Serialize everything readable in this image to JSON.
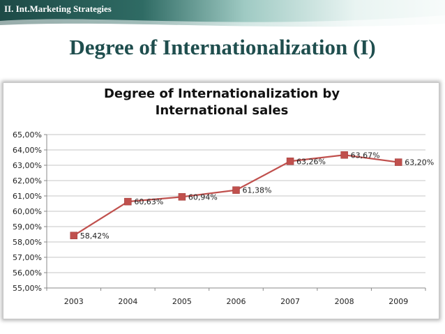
{
  "header": {
    "section_label": "II. Int.Marketing Strategies",
    "slide_title": "Degree of Internationalization (I)"
  },
  "colors": {
    "banner_dark": "#1d4a46",
    "banner_light": "#e9f4f2",
    "series": "#c0504d"
  },
  "chart_data": {
    "type": "line",
    "title_lines": [
      "Degree of Internationalization by",
      "International sales"
    ],
    "categories": [
      "2003",
      "2004",
      "2005",
      "2006",
      "2007",
      "2008",
      "2009"
    ],
    "values": [
      58.42,
      60.63,
      60.94,
      61.38,
      63.26,
      63.67,
      63.2
    ],
    "data_labels": [
      "58,42%",
      "60,63%",
      "60,94%",
      "61,38%",
      "63,26%",
      "63,67%",
      "63,20%"
    ],
    "ylim": [
      55,
      65
    ],
    "y_ticks": [
      "55,00%",
      "56,00%",
      "57,00%",
      "58,00%",
      "59,00%",
      "60,00%",
      "61,00%",
      "62,00%",
      "63,00%",
      "64,00%",
      "65,00%"
    ],
    "grid": true,
    "legend": "none"
  }
}
